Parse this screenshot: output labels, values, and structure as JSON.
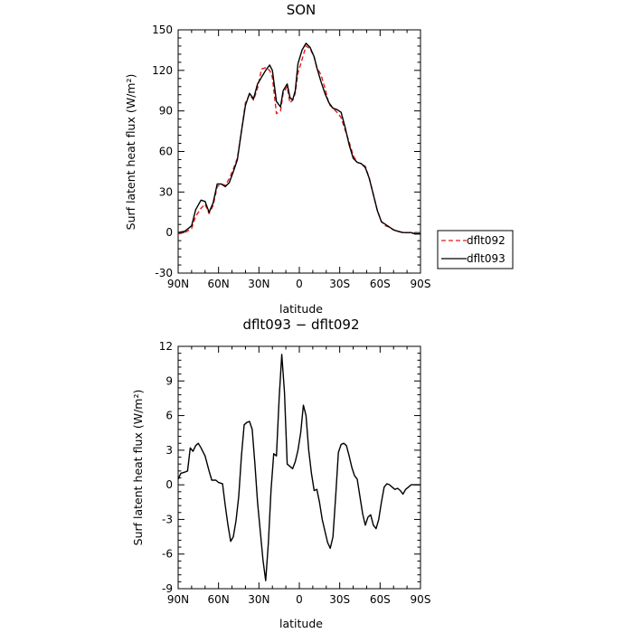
{
  "chart_data": [
    {
      "type": "line",
      "title": "SON",
      "xlabel": "latitude",
      "ylabel": "Surf latent heat flux (W/m²)",
      "xlim": [
        90,
        -90
      ],
      "ylim": [
        -30,
        150
      ],
      "xticks": [
        90,
        60,
        30,
        0,
        -30,
        -60,
        -90
      ],
      "xtick_labels": [
        "90N",
        "60N",
        "30N",
        "0",
        "30S",
        "60S",
        "90S"
      ],
      "yticks": [
        -30,
        0,
        30,
        60,
        90,
        120,
        150
      ],
      "ytick_labels": [
        "-30",
        "0",
        "30",
        "60",
        "90",
        "120",
        "150"
      ],
      "legend": "right",
      "series": [
        {
          "name": "dflt092",
          "color": "#e41a1c",
          "dash": "dashed",
          "x": [
            90,
            85,
            80,
            77,
            73,
            70,
            67,
            64,
            61,
            58,
            55,
            52,
            49,
            46,
            43,
            40,
            37,
            34,
            31,
            28,
            25,
            22,
            20,
            17,
            14,
            12,
            9,
            7,
            5,
            3,
            1,
            -2,
            -5,
            -8,
            -11,
            -13,
            -16,
            -19,
            -22,
            -25,
            -28,
            -31,
            -34,
            -37,
            -40,
            -43,
            -46,
            -49,
            -52,
            -55,
            -58,
            -61,
            -64,
            -67,
            -70,
            -73,
            -77,
            -80,
            -83,
            -86,
            -90
          ],
          "y": [
            -1,
            0,
            3,
            12,
            18,
            21,
            14,
            20,
            34,
            36,
            35,
            40,
            47,
            55,
            75,
            96,
            102,
            98,
            107,
            121,
            122,
            120,
            115,
            88,
            90,
            103,
            108,
            96,
            98,
            103,
            118,
            128,
            138,
            136,
            130,
            122,
            117,
            107,
            95,
            92,
            89,
            85,
            76,
            67,
            57,
            52,
            51,
            49,
            40,
            28,
            16,
            8,
            5,
            4,
            2,
            1,
            0,
            0,
            0,
            -1,
            -1
          ]
        },
        {
          "name": "dflt093",
          "color": "#000000",
          "dash": "solid",
          "x": [
            90,
            85,
            80,
            77,
            73,
            70,
            67,
            64,
            61,
            58,
            55,
            52,
            49,
            46,
            43,
            40,
            37,
            34,
            31,
            28,
            25,
            22,
            20,
            17,
            14,
            12,
            9,
            7,
            5,
            3,
            1,
            -2,
            -5,
            -8,
            -11,
            -13,
            -16,
            -19,
            -22,
            -25,
            -28,
            -31,
            -34,
            -37,
            -40,
            -43,
            -46,
            -49,
            -52,
            -55,
            -58,
            -61,
            -64,
            -67,
            -70,
            -73,
            -77,
            -80,
            -83,
            -86,
            -90
          ],
          "y": [
            0,
            1,
            5,
            17,
            24,
            23,
            15,
            22,
            36,
            36,
            34,
            37,
            45,
            54,
            75,
            94,
            103,
            99,
            110,
            115,
            120,
            124,
            120,
            97,
            93,
            105,
            110,
            100,
            98,
            105,
            125,
            135,
            140,
            137,
            130,
            122,
            112,
            103,
            96,
            92,
            91,
            89,
            78,
            65,
            55,
            52,
            51,
            48,
            40,
            28,
            16,
            8,
            6,
            4,
            2,
            1,
            0,
            0,
            0,
            -1,
            -1
          ]
        }
      ]
    },
    {
      "type": "line",
      "title": "dflt093 − dflt092",
      "xlabel": "latitude",
      "ylabel": "Surf latent heat flux (W/m²)",
      "xlim": [
        90,
        -90
      ],
      "ylim": [
        -9,
        12
      ],
      "xticks": [
        90,
        60,
        30,
        0,
        -30,
        -60,
        -90
      ],
      "xtick_labels": [
        "90N",
        "60N",
        "30N",
        "0",
        "30S",
        "60S",
        "90S"
      ],
      "yticks": [
        -9,
        -6,
        -3,
        0,
        3,
        6,
        9,
        12
      ],
      "ytick_labels": [
        "-9",
        "-6",
        "-3",
        "0",
        "3",
        "6",
        "9",
        "12"
      ],
      "series": [
        {
          "color": "#000000",
          "dash": "solid",
          "x": [
            90,
            88,
            85,
            83,
            81,
            79,
            77,
            75,
            73,
            70,
            67,
            65,
            62,
            60,
            57,
            55,
            53,
            51,
            49,
            47,
            45,
            43,
            41,
            39,
            37,
            35,
            33,
            31,
            29,
            27,
            25,
            23,
            21,
            19,
            17,
            15,
            13,
            11,
            9,
            7,
            5,
            3,
            1,
            -1,
            -3,
            -5,
            -7,
            -9,
            -11,
            -13,
            -15,
            -17,
            -19,
            -21,
            -23,
            -25,
            -27,
            -29,
            -31,
            -33,
            -35,
            -37,
            -39,
            -41,
            -43,
            -45,
            -47,
            -49,
            -51,
            -53,
            -55,
            -57,
            -59,
            -61,
            -63,
            -65,
            -67,
            -69,
            -71,
            -73,
            -75,
            -77,
            -79,
            -81,
            -83,
            -85,
            -87,
            -90
          ],
          "y": [
            0.5,
            1.0,
            1.1,
            1.2,
            3.2,
            2.9,
            3.4,
            3.6,
            3.2,
            2.5,
            1.2,
            0.4,
            0.4,
            0.2,
            0.1,
            -1.8,
            -3.5,
            -4.9,
            -4.5,
            -3.1,
            -1.0,
            2.5,
            5.2,
            5.4,
            5.5,
            4.8,
            1.8,
            -1.5,
            -4.0,
            -6.5,
            -8.3,
            -5.0,
            -0.5,
            2.7,
            2.5,
            7.5,
            11.3,
            8.0,
            1.8,
            1.6,
            1.4,
            2.0,
            3.0,
            4.5,
            6.9,
            6.0,
            3.0,
            1.0,
            -0.5,
            -0.4,
            -1.5,
            -3.0,
            -4.0,
            -5.0,
            -5.5,
            -4.5,
            -1.0,
            2.8,
            3.5,
            3.6,
            3.4,
            2.5,
            1.5,
            0.8,
            0.5,
            -1.0,
            -2.5,
            -3.5,
            -2.8,
            -2.6,
            -3.5,
            -3.8,
            -3.0,
            -1.5,
            -0.2,
            0.1,
            0.0,
            -0.2,
            -0.4,
            -0.3,
            -0.5,
            -0.8,
            -0.4,
            -0.2,
            0.0,
            0.0,
            0.0,
            0.0
          ]
        }
      ]
    }
  ]
}
